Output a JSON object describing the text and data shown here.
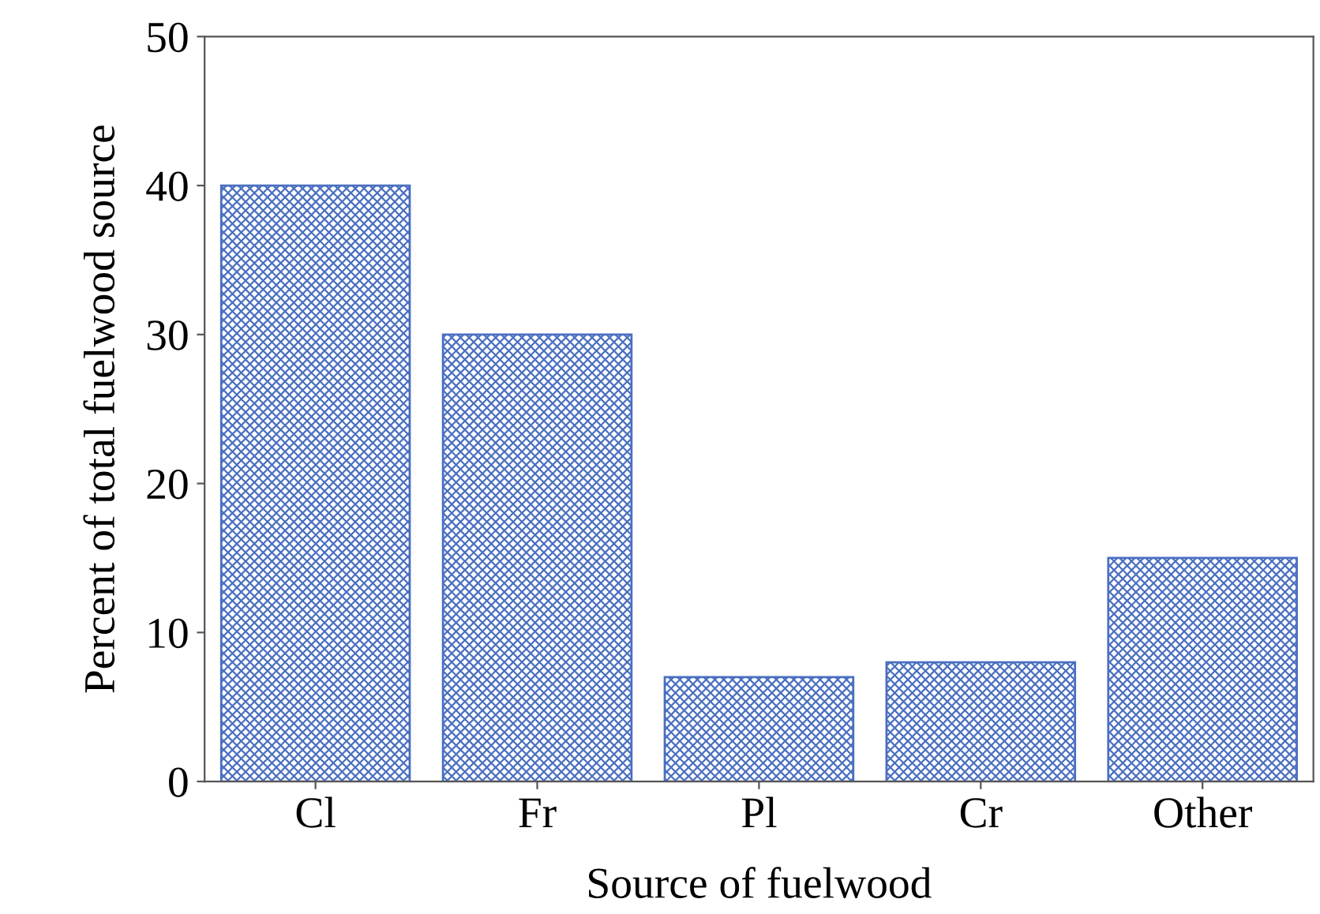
{
  "chart_data": {
    "type": "bar",
    "xlabel": "Source of fuelwood",
    "ylabel": "Percent of total fuelwood source",
    "categories": [
      "Cl",
      "Fr",
      "Pl",
      "Cr",
      "Other"
    ],
    "values": [
      40,
      30,
      7,
      8,
      15
    ],
    "color": "#4a6fc0",
    "ylim": [
      0,
      50
    ],
    "yticks": [
      0,
      10,
      20,
      30,
      40,
      50
    ],
    "grid": false
  }
}
